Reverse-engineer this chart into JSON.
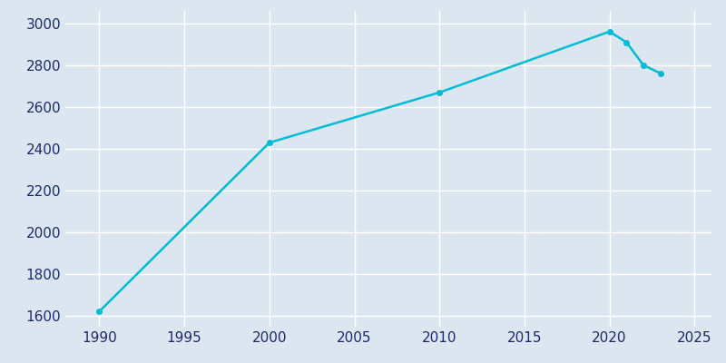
{
  "years": [
    1990,
    2000,
    2010,
    2020,
    2021,
    2022,
    2023
  ],
  "population": [
    1623,
    2430,
    2670,
    2961,
    2910,
    2800,
    2762
  ],
  "line_color": "#00bcd4",
  "marker": "o",
  "marker_size": 4,
  "bg_color": "#dce6f0",
  "plot_bg_color": "#dce6f0",
  "grid_color": "#ffffff",
  "xlim": [
    1988,
    2026
  ],
  "ylim": [
    1550,
    3060
  ],
  "xticks": [
    1990,
    1995,
    2000,
    2005,
    2010,
    2015,
    2020,
    2025
  ],
  "yticks": [
    1600,
    1800,
    2000,
    2200,
    2400,
    2600,
    2800,
    3000
  ],
  "tick_label_color": "#1a2a6e",
  "tick_fontsize": 11,
  "line_width": 1.8
}
